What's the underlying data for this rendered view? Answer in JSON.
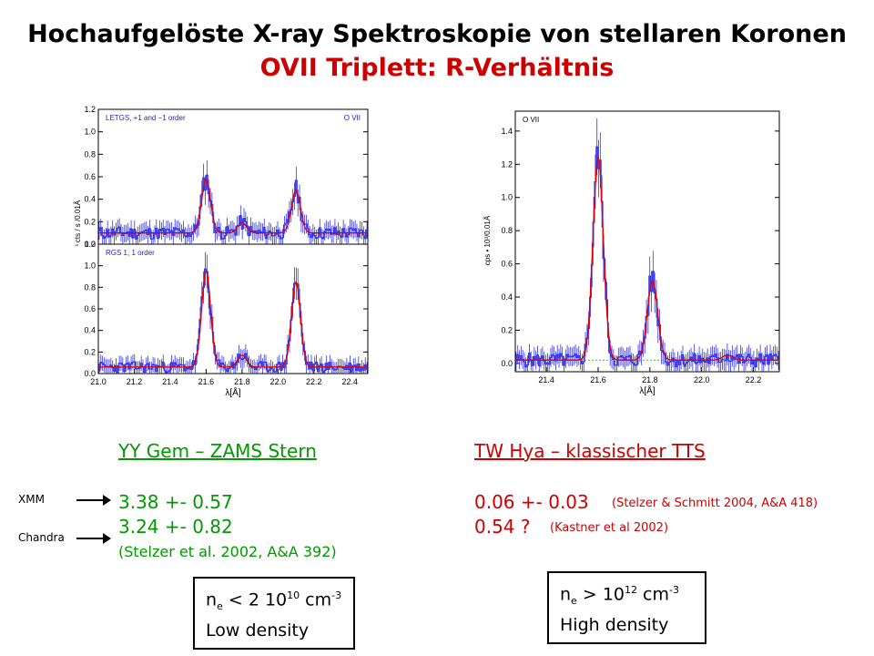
{
  "title": "Hochaufgelöste X-ray Spektroskopie von stellaren Koronen",
  "subtitle": "OVII Triplett:  R-Verhältnis",
  "left": {
    "header": "YY Gem – ZAMS Stern",
    "value1": "3.38 +- 0.57",
    "value2": "3.24 +- 0.82",
    "ref": "(Stelzer et al. 2002, A&A 392)",
    "xmm": "XMM",
    "chandra": "Chandra",
    "box": {
      "prefix": "n",
      "sub": "e",
      "mid": " < 2 10",
      "sup1": "10",
      "unit": " cm",
      "sup2": "-3",
      "line2": "Low density"
    }
  },
  "right": {
    "header": "TW Hya – klassischer TTS",
    "value1": "0.06 +- 0.03",
    "ref1": "(Stelzer & Schmitt 2004, A&A 418)",
    "value2": "0.54 ?",
    "ref2": "(Kastner et al 2002)",
    "box": {
      "prefix": "n",
      "sub": "e",
      "mid": " > 10",
      "sup1": "12",
      "unit": "  cm",
      "sup2": "-3",
      "line2": "High density"
    }
  },
  "chart_data": [
    {
      "type": "line",
      "panel": "top-left",
      "label_left": "LETGS, +1 and −1 order",
      "label_right": "O VII",
      "ylabel": "10⁻³ cts / s /0.01Å",
      "xlim": [
        21.0,
        22.5
      ],
      "ylim": [
        0,
        1.2
      ],
      "yticks": [
        "0.0",
        "0.2",
        "0.4",
        "0.6",
        "0.8",
        "1.0",
        "1.2"
      ],
      "peaks": [
        {
          "x": 21.6,
          "y": 0.58
        },
        {
          "x": 21.8,
          "y": 0.19
        },
        {
          "x": 22.1,
          "y": 0.48
        }
      ],
      "continuum": 0.1
    },
    {
      "type": "line",
      "panel": "bottom-left",
      "label_left": "RGS 1, 1 order",
      "xlabel": "λ[Å]",
      "xlim": [
        21.0,
        22.5
      ],
      "ylim": [
        0,
        1.2
      ],
      "xticks": [
        "21.0",
        "21.2",
        "21.4",
        "21.6",
        "21.8",
        "22.0",
        "22.2",
        "22.4"
      ],
      "yticks": [
        "0.0",
        "0.2",
        "0.4",
        "0.6",
        "0.8",
        "1.0",
        "1.2"
      ],
      "peaks": [
        {
          "x": 21.6,
          "y": 0.95
        },
        {
          "x": 21.8,
          "y": 0.17
        },
        {
          "x": 22.1,
          "y": 0.85
        }
      ],
      "continuum": 0.06
    },
    {
      "type": "line",
      "panel": "right",
      "label_left": "O VII",
      "xlabel": "λ[Å]",
      "ylabel": "cps • 10³/0.01Å",
      "xlim": [
        21.28,
        22.3
      ],
      "ylim": [
        -0.05,
        1.52
      ],
      "xticks": [
        "21.4",
        "21.6",
        "21.8",
        "22.0",
        "22.2"
      ],
      "yticks": [
        "0.0",
        "0.2",
        "0.4",
        "0.6",
        "0.8",
        "1.0",
        "1.2",
        "1.4"
      ],
      "peaks": [
        {
          "x": 21.6,
          "y": 1.24
        },
        {
          "x": 21.81,
          "y": 0.5
        },
        {
          "x": 22.1,
          "y": 0.05
        }
      ],
      "continuum": 0.02
    }
  ]
}
